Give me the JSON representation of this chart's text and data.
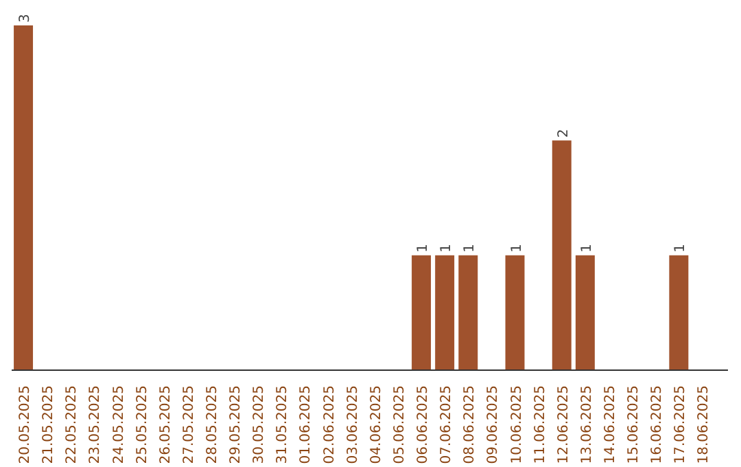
{
  "chart_data": {
    "type": "bar",
    "categories": [
      "20.05.2025",
      "21.05.2025",
      "22.05.2025",
      "23.05.2025",
      "24.05.2025",
      "25.05.2025",
      "26.05.2025",
      "27.05.2025",
      "28.05.2025",
      "29.05.2025",
      "30.05.2025",
      "31.05.2025",
      "01.06.2025",
      "02.06.2025",
      "03.06.2025",
      "04.06.2025",
      "05.06.2025",
      "06.06.2025",
      "07.06.2025",
      "08.06.2025",
      "09.06.2025",
      "10.06.2025",
      "11.06.2025",
      "12.06.2025",
      "13.06.2025",
      "14.06.2025",
      "15.06.2025",
      "16.06.2025",
      "17.06.2025",
      "18.06.2025"
    ],
    "values": [
      3,
      0,
      0,
      0,
      0,
      0,
      0,
      0,
      0,
      0,
      0,
      0,
      0,
      0,
      0,
      0,
      0,
      1,
      1,
      1,
      0,
      1,
      0,
      2,
      1,
      0,
      0,
      0,
      1,
      0
    ],
    "value_labels": [
      "3",
      null,
      null,
      null,
      null,
      null,
      null,
      null,
      null,
      null,
      null,
      null,
      null,
      null,
      null,
      null,
      null,
      "1",
      "1",
      "1",
      null,
      "1",
      null,
      "2",
      "1",
      null,
      null,
      null,
      "1",
      null
    ],
    "color": "#a0522d",
    "grid": false
  }
}
